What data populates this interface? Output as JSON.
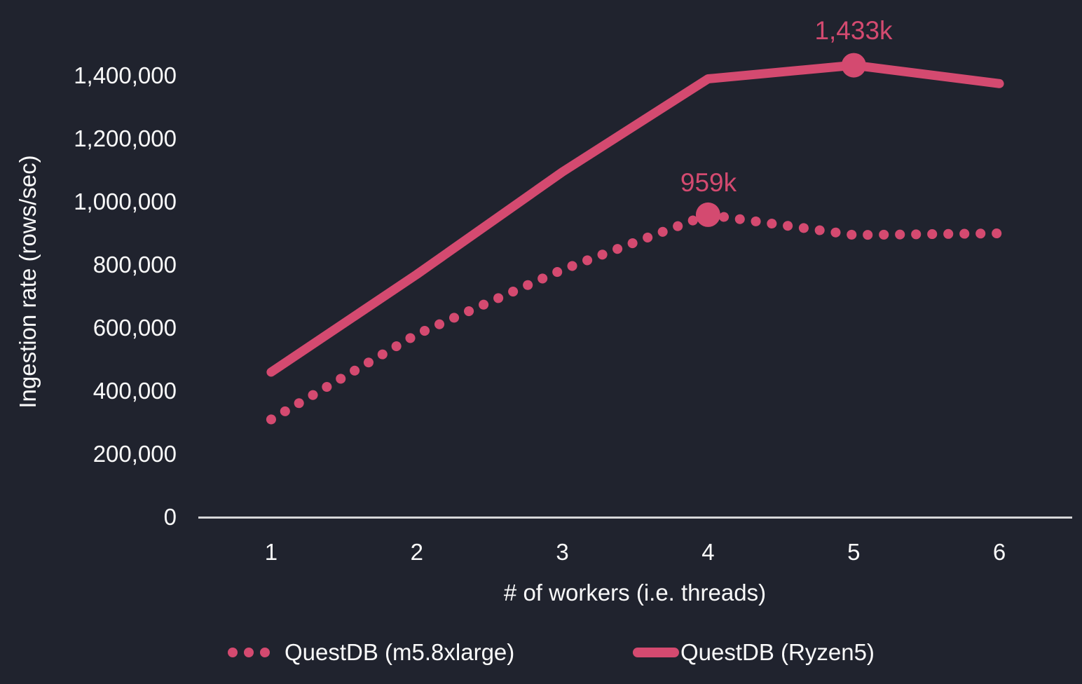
{
  "style": {
    "background": "#20232e",
    "accent_pink": "#d44a70",
    "text_color": "#fafafa",
    "axis_line_color": "#d6d6d8"
  },
  "chart_data": {
    "type": "line",
    "title": "",
    "xlabel": "# of workers (i.e. threads)",
    "ylabel": "Ingestion rate (rows/sec)",
    "x": [
      1,
      2,
      3,
      4,
      5,
      6
    ],
    "x_tick_labels": [
      "1",
      "2",
      "3",
      "4",
      "5",
      "6"
    ],
    "y_tick_values": [
      0,
      200000,
      400000,
      600000,
      800000,
      1000000,
      1200000,
      1400000
    ],
    "y_tick_labels": [
      "0",
      "200,000",
      "400,000",
      "600,000",
      "800,000",
      "1,000,000",
      "1,200,000",
      "1,400,000"
    ],
    "ylim": [
      0,
      1500000
    ],
    "grid": false,
    "legend_position": "bottom",
    "series": [
      {
        "name": "QuestDB (m5.8xlarge)",
        "style": "dotted",
        "color": "#d44a70",
        "values": [
          310000,
          580000,
          785000,
          959000,
          895000,
          900000
        ],
        "highlight": {
          "x": 4,
          "value": 959000,
          "label": "959k"
        }
      },
      {
        "name": "QuestDB (Ryzen5)",
        "style": "solid",
        "color": "#d44a70",
        "values": [
          460000,
          770000,
          1095000,
          1390000,
          1433000,
          1375000
        ],
        "highlight": {
          "x": 5,
          "value": 1433000,
          "label": "1,433k"
        }
      }
    ]
  }
}
